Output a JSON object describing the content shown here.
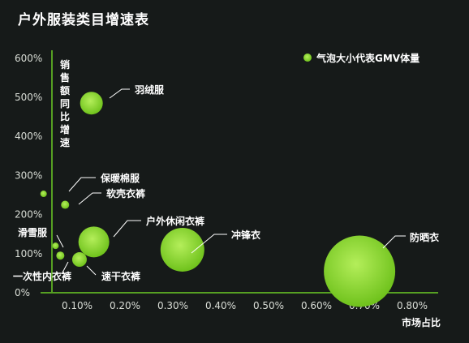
{
  "title": "户外服装类目增速表",
  "legend": {
    "label": "气泡大小代表GMV体量",
    "position": "top-right"
  },
  "colors": {
    "bubble_center": "#b4ee5a",
    "bubble_edge": "#6fc21c",
    "axis": "#56a022",
    "background": "#161a19"
  },
  "chart_data": {
    "type": "scatter",
    "xlabel": "市场占比",
    "ylabel": "销售额同比增速",
    "x_unit": "%",
    "y_unit": "%",
    "xlim": [
      0,
      0.85
    ],
    "ylim": [
      0,
      650
    ],
    "xticks": [
      {
        "value": 0.1,
        "label": "0.10%"
      },
      {
        "value": 0.2,
        "label": "0.20%"
      },
      {
        "value": 0.3,
        "label": "0.30%"
      },
      {
        "value": 0.4,
        "label": "0.40%"
      },
      {
        "value": 0.5,
        "label": "0.50%"
      },
      {
        "value": 0.6,
        "label": "0.60%"
      },
      {
        "value": 0.7,
        "label": "0.70%"
      },
      {
        "value": 0.8,
        "label": "0.80%"
      }
    ],
    "yticks": [
      {
        "value": 0,
        "label": "0%"
      },
      {
        "value": 100,
        "label": "100%"
      },
      {
        "value": 200,
        "label": "200%"
      },
      {
        "value": 300,
        "label": "300%"
      },
      {
        "value": 400,
        "label": "400%"
      },
      {
        "value": 500,
        "label": "500%"
      },
      {
        "value": 600,
        "label": "600%"
      }
    ],
    "points": [
      {
        "name": "羽绒服",
        "x": 0.13,
        "y": 485,
        "size": 14
      },
      {
        "name": "保暖棉服",
        "x": 0.03,
        "y": 253,
        "size": 4
      },
      {
        "name": "软壳衣裤",
        "x": 0.075,
        "y": 225,
        "size": 5
      },
      {
        "name": "户外休闲衣裤",
        "x": 0.135,
        "y": 130,
        "size": 19
      },
      {
        "name": "冲锋衣",
        "x": 0.32,
        "y": 110,
        "size": 27
      },
      {
        "name": "滑雪服",
        "x": 0.055,
        "y": 120,
        "size": 4
      },
      {
        "name": "一次性内衣裤",
        "x": 0.065,
        "y": 95,
        "size": 5
      },
      {
        "name": "速干衣裤",
        "x": 0.105,
        "y": 85,
        "size": 9
      },
      {
        "name": "防晒衣",
        "x": 0.69,
        "y": 55,
        "size": 44
      }
    ]
  }
}
